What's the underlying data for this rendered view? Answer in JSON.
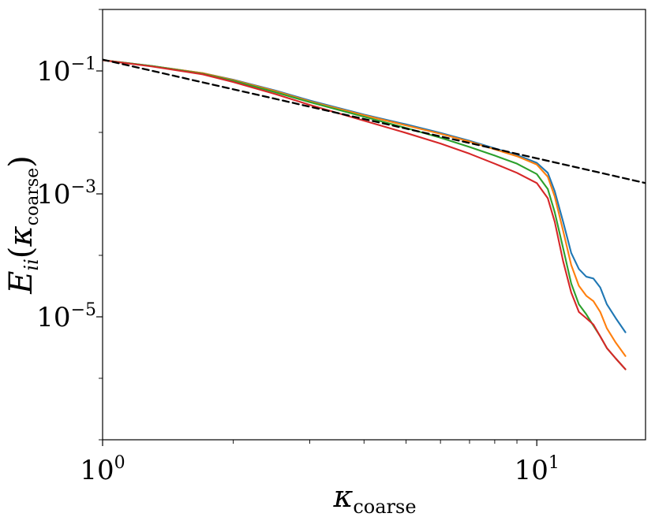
{
  "chart_data": {
    "type": "line",
    "xlabel_base": "κ",
    "xlabel_sub": "coarse",
    "ylabel_main": "E",
    "ylabel_sub": "ii",
    "ylabel_open": "(",
    "ylabel_kappa": "κ",
    "ylabel_kappa_sub": "coarse",
    "ylabel_close": ")",
    "xscale": "log",
    "yscale": "log",
    "xlim": [
      1.0,
      17.8
    ],
    "ylim": [
      1e-07,
      1.0
    ],
    "x_ticks": [
      {
        "value": 1,
        "base": "10",
        "exp": "0"
      },
      {
        "value": 10,
        "base": "10",
        "exp": "1"
      }
    ],
    "y_ticks": [
      {
        "value": 0.1,
        "base": "10",
        "exp": "−1"
      },
      {
        "value": 0.001,
        "base": "10",
        "exp": "−3"
      },
      {
        "value": 1e-05,
        "base": "10",
        "exp": "−5"
      }
    ],
    "grid": false,
    "series": [
      {
        "color": "#1f77b4",
        "style": "solid",
        "points": [
          [
            1.0,
            0.15
          ],
          [
            1.3,
            0.12
          ],
          [
            1.7,
            0.092
          ],
          [
            2.0,
            0.072
          ],
          [
            2.5,
            0.048
          ],
          [
            3.0,
            0.033
          ],
          [
            4.0,
            0.0195
          ],
          [
            5.0,
            0.0135
          ],
          [
            6.0,
            0.0098
          ],
          [
            7.0,
            0.0073
          ],
          [
            8.0,
            0.0055
          ],
          [
            9.0,
            0.0043
          ],
          [
            10.0,
            0.0032
          ],
          [
            10.6,
            0.0022
          ],
          [
            11.0,
            0.0011
          ],
          [
            11.5,
            0.00035
          ],
          [
            12.0,
            0.00011
          ],
          [
            12.5,
            6e-05
          ],
          [
            13.0,
            4.5e-05
          ],
          [
            13.5,
            4.2e-05
          ],
          [
            14.0,
            3e-05
          ],
          [
            14.5,
            1.6e-05
          ],
          [
            15.2,
            9.5e-06
          ],
          [
            16.0,
            5.6e-06
          ]
        ]
      },
      {
        "color": "#ff7f0e",
        "style": "solid",
        "points": [
          [
            1.0,
            0.15
          ],
          [
            1.3,
            0.12
          ],
          [
            1.7,
            0.092
          ],
          [
            2.0,
            0.071
          ],
          [
            2.5,
            0.047
          ],
          [
            3.0,
            0.032
          ],
          [
            4.0,
            0.019
          ],
          [
            5.0,
            0.013
          ],
          [
            6.0,
            0.0095
          ],
          [
            7.0,
            0.0071
          ],
          [
            8.0,
            0.0053
          ],
          [
            9.0,
            0.0041
          ],
          [
            10.0,
            0.003
          ],
          [
            10.6,
            0.0019
          ],
          [
            11.0,
            0.0009
          ],
          [
            11.5,
            0.00025
          ],
          [
            12.0,
            7e-05
          ],
          [
            12.5,
            3.2e-05
          ],
          [
            13.0,
            2.2e-05
          ],
          [
            13.5,
            1.8e-05
          ],
          [
            14.0,
            1.2e-05
          ],
          [
            14.5,
            6.5e-06
          ],
          [
            15.2,
            3.8e-06
          ],
          [
            16.0,
            2.3e-06
          ]
        ]
      },
      {
        "color": "#2ca02c",
        "style": "solid",
        "points": [
          [
            1.0,
            0.15
          ],
          [
            1.3,
            0.12
          ],
          [
            1.7,
            0.09
          ],
          [
            2.0,
            0.069
          ],
          [
            2.5,
            0.045
          ],
          [
            3.0,
            0.031
          ],
          [
            4.0,
            0.018
          ],
          [
            5.0,
            0.0118
          ],
          [
            6.0,
            0.0082
          ],
          [
            7.0,
            0.0058
          ],
          [
            8.0,
            0.0042
          ],
          [
            9.0,
            0.0031
          ],
          [
            10.0,
            0.0021
          ],
          [
            10.6,
            0.0012
          ],
          [
            11.0,
            0.0005
          ],
          [
            11.5,
            0.00013
          ],
          [
            12.0,
            3.5e-05
          ],
          [
            12.5,
            1.6e-05
          ],
          [
            13.0,
            1.1e-05
          ],
          [
            13.5,
            7.2e-06
          ],
          [
            14.0,
            4.8e-06
          ],
          [
            14.5,
            3.1e-06
          ],
          [
            15.2,
            2.1e-06
          ],
          [
            16.0,
            1.4e-06
          ]
        ]
      },
      {
        "color": "#d62728",
        "style": "solid",
        "points": [
          [
            1.0,
            0.15
          ],
          [
            1.3,
            0.118
          ],
          [
            1.7,
            0.088
          ],
          [
            2.0,
            0.066
          ],
          [
            2.5,
            0.042
          ],
          [
            3.0,
            0.028
          ],
          [
            4.0,
            0.0155
          ],
          [
            5.0,
            0.0098
          ],
          [
            6.0,
            0.0066
          ],
          [
            7.0,
            0.0045
          ],
          [
            8.0,
            0.0031
          ],
          [
            9.0,
            0.0022
          ],
          [
            10.0,
            0.0015
          ],
          [
            10.6,
            0.00085
          ],
          [
            11.0,
            0.00035
          ],
          [
            11.5,
            8e-05
          ],
          [
            12.0,
            2.5e-05
          ],
          [
            12.5,
            1.2e-05
          ],
          [
            13.0,
            9.5e-06
          ],
          [
            13.5,
            7.5e-06
          ],
          [
            14.0,
            4.8e-06
          ],
          [
            14.5,
            3.1e-06
          ],
          [
            15.2,
            2.1e-06
          ],
          [
            16.0,
            1.4e-06
          ]
        ]
      },
      {
        "color": "#000000",
        "style": "dashed",
        "points": [
          [
            1.0,
            0.153
          ],
          [
            17.8,
            0.0015
          ]
        ]
      }
    ]
  }
}
